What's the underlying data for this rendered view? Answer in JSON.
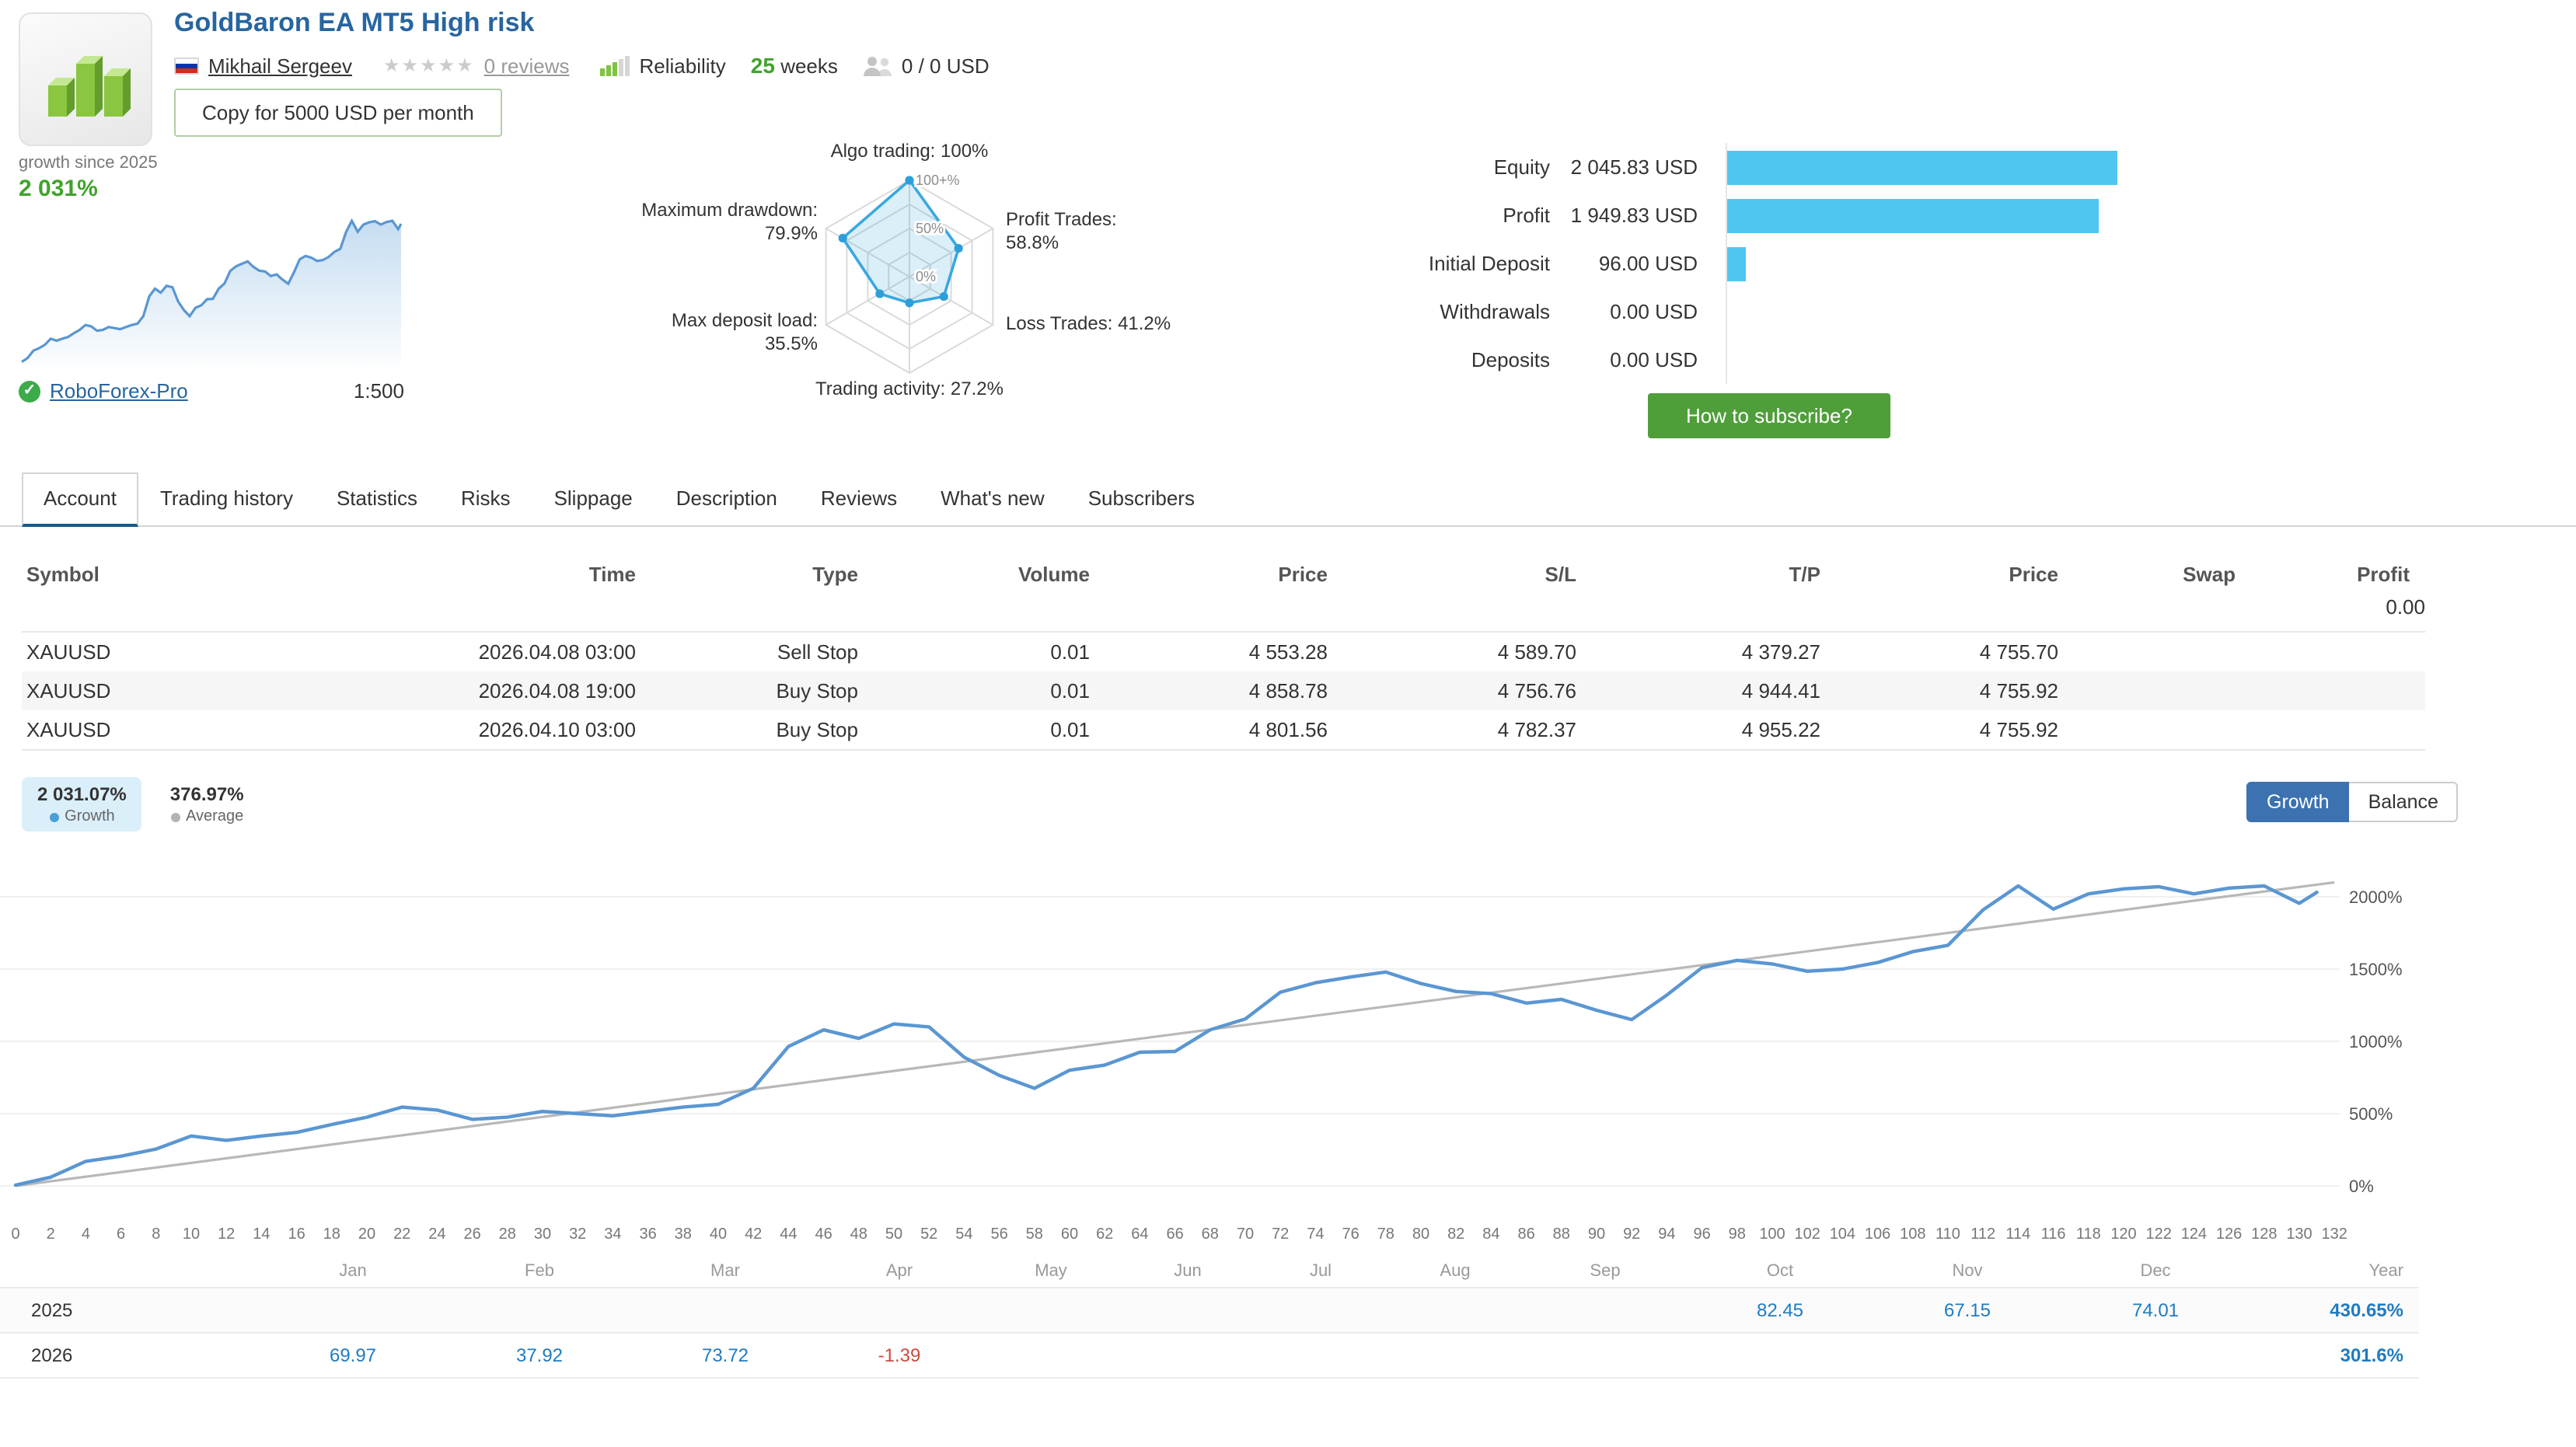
{
  "header": {
    "title": "GoldBaron EA MT5 High risk",
    "author": "Mikhail Sergeev",
    "author_country": "Russia",
    "rating_total": 5,
    "rating_filled": 0,
    "reviews": "0 reviews",
    "reliability_label": "Reliability",
    "reliability_level": 3,
    "reliability_bars": 5,
    "weeks_value": "25",
    "weeks_label": "weeks",
    "subscribers": "0 / 0 USD",
    "copy_button": "Copy for 5000 USD per month"
  },
  "growth_panel": {
    "caption": "growth since 2025",
    "value": "2 031%",
    "broker": "RoboForex-Pro",
    "leverage": "1:500"
  },
  "stats": {
    "max": 2045.83,
    "rows": [
      {
        "label": "Equity",
        "value": "2 045.83 USD",
        "amount": 2045.83
      },
      {
        "label": "Profit",
        "value": "1 949.83 USD",
        "amount": 1949.83
      },
      {
        "label": "Initial Deposit",
        "value": "96.00 USD",
        "amount": 96
      },
      {
        "label": "Withdrawals",
        "value": "0.00 USD",
        "amount": 0
      },
      {
        "label": "Deposits",
        "value": "0.00 USD",
        "amount": 0
      }
    ],
    "subscribe_button": "How to subscribe?"
  },
  "tabs": {
    "active_index": 0,
    "items": [
      "Account",
      "Trading history",
      "Statistics",
      "Risks",
      "Slippage",
      "Description",
      "Reviews",
      "What's new",
      "Subscribers"
    ]
  },
  "positions_table": {
    "columns": [
      "Symbol",
      "Time",
      "Type",
      "Volume",
      "Price",
      "S/L",
      "T/P",
      "Price",
      "Swap",
      "Profit"
    ],
    "profit_total": "0.00",
    "rows": [
      [
        "XAUUSD",
        "2026.04.08 03:00",
        "Sell Stop",
        "0.01",
        "4 553.28",
        "4 589.70",
        "4 379.27",
        "4 755.70",
        "",
        ""
      ],
      [
        "XAUUSD",
        "2026.04.08 19:00",
        "Buy Stop",
        "0.01",
        "4 858.78",
        "4 756.76",
        "4 944.41",
        "4 755.92",
        "",
        ""
      ],
      [
        "XAUUSD",
        "2026.04.10 03:00",
        "Buy Stop",
        "0.01",
        "4 801.56",
        "4 782.37",
        "4 955.22",
        "4 755.92",
        "",
        ""
      ]
    ]
  },
  "growth_summary": {
    "growth_pct": "2 031.07%",
    "growth_label": "Growth",
    "average_pct": "376.97%",
    "average_label": "Average",
    "growth_button": "Growth",
    "balance_button": "Balance"
  },
  "chart_data": [
    {
      "id": "growth-chart",
      "type": "line",
      "title": "Account growth, %",
      "x_min": 0,
      "x_max": 132,
      "x_tick_step": 2,
      "y_unit": "%",
      "y_ticks": [
        0,
        500,
        1000,
        1500,
        2000
      ],
      "ylim": [
        0,
        2100
      ],
      "legend_position": "top-left",
      "series": [
        {
          "name": "Growth",
          "color": "#5a96d2",
          "points": [
            [
              0,
              5
            ],
            [
              2,
              60
            ],
            [
              4,
              170
            ],
            [
              6,
              205
            ],
            [
              8,
              255
            ],
            [
              10,
              345
            ],
            [
              12,
              315
            ],
            [
              14,
              345
            ],
            [
              16,
              370
            ],
            [
              18,
              425
            ],
            [
              20,
              475
            ],
            [
              22,
              545
            ],
            [
              24,
              525
            ],
            [
              26,
              460
            ],
            [
              28,
              475
            ],
            [
              30,
              515
            ],
            [
              32,
              500
            ],
            [
              34,
              485
            ],
            [
              36,
              515
            ],
            [
              38,
              545
            ],
            [
              40,
              565
            ],
            [
              42,
              675
            ],
            [
              44,
              965
            ],
            [
              46,
              1080
            ],
            [
              48,
              1020
            ],
            [
              50,
              1120
            ],
            [
              52,
              1100
            ],
            [
              54,
              890
            ],
            [
              56,
              765
            ],
            [
              58,
              675
            ],
            [
              60,
              800
            ],
            [
              62,
              835
            ],
            [
              64,
              925
            ],
            [
              66,
              930
            ],
            [
              68,
              1080
            ],
            [
              70,
              1155
            ],
            [
              72,
              1340
            ],
            [
              74,
              1405
            ],
            [
              76,
              1445
            ],
            [
              78,
              1480
            ],
            [
              80,
              1400
            ],
            [
              82,
              1345
            ],
            [
              84,
              1330
            ],
            [
              86,
              1265
            ],
            [
              88,
              1290
            ],
            [
              90,
              1215
            ],
            [
              92,
              1150
            ],
            [
              94,
              1320
            ],
            [
              96,
              1510
            ],
            [
              98,
              1560
            ],
            [
              100,
              1535
            ],
            [
              102,
              1485
            ],
            [
              104,
              1500
            ],
            [
              106,
              1545
            ],
            [
              108,
              1620
            ],
            [
              110,
              1665
            ],
            [
              112,
              1910
            ],
            [
              114,
              2075
            ],
            [
              116,
              1915
            ],
            [
              118,
              2020
            ],
            [
              120,
              2055
            ],
            [
              122,
              2070
            ],
            [
              124,
              2020
            ],
            [
              126,
              2060
            ],
            [
              128,
              2075
            ],
            [
              130,
              1955
            ],
            [
              131,
              2031
            ]
          ]
        },
        {
          "name": "Average",
          "color": "#b8b8b8",
          "points": [
            [
              0,
              0
            ],
            [
              132,
              2100
            ]
          ]
        }
      ]
    },
    {
      "id": "signal-radar",
      "type": "radar",
      "max": 100,
      "ring_labels": [
        {
          "frac": 1,
          "text": "100+%"
        },
        {
          "frac": 0.5,
          "text": "50%"
        },
        {
          "frac": 0,
          "text": "0%"
        }
      ],
      "axes": [
        {
          "label": "Algo trading: 100%",
          "value": 100
        },
        {
          "label": "Profit Trades: 58.8%",
          "value": 58.8
        },
        {
          "label": "Loss Trades: 41.2%",
          "value": 41.2
        },
        {
          "label": "Trading activity: 27.2%",
          "value": 27.2
        },
        {
          "label": "Max deposit load: 35.5%",
          "value": 35.5
        },
        {
          "label": "Maximum drawdown: 79.9%",
          "value": 79.9
        }
      ]
    }
  ],
  "monthly_table": {
    "months": [
      "Jan",
      "Feb",
      "Mar",
      "Apr",
      "May",
      "Jun",
      "Jul",
      "Aug",
      "Sep",
      "Oct",
      "Nov",
      "Dec"
    ],
    "year_header": "Year",
    "rows": [
      {
        "year": "2025",
        "values": [
          "",
          "",
          "",
          "",
          "",
          "",
          "",
          "",
          "",
          "82.45",
          "67.15",
          "74.01"
        ],
        "total": "430.65%"
      },
      {
        "year": "2026",
        "values": [
          "69.97",
          "37.92",
          "73.72",
          "-1.39",
          "",
          "",
          "",
          "",
          "",
          "",
          "",
          ""
        ],
        "total": "301.6%"
      }
    ]
  }
}
